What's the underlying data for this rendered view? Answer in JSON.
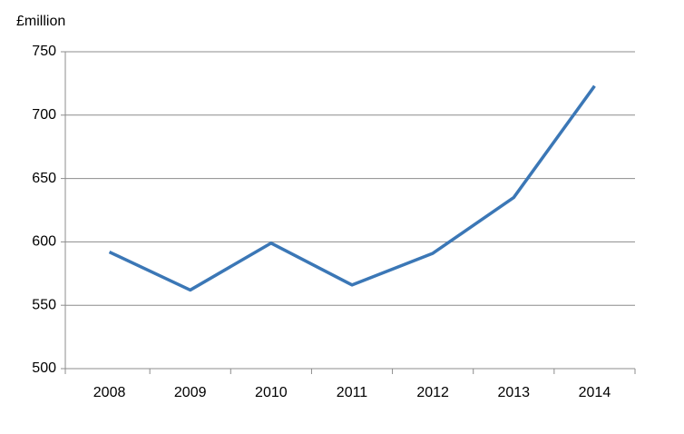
{
  "chart_data": {
    "type": "line",
    "y_label": "£million",
    "categories": [
      "2008",
      "2009",
      "2010",
      "2011",
      "2012",
      "2013",
      "2014"
    ],
    "values": [
      592,
      562,
      599,
      566,
      591,
      635,
      723
    ],
    "color": "#3b77b6",
    "ylim": [
      500,
      750
    ],
    "yticks": [
      500,
      550,
      600,
      650,
      700,
      750
    ],
    "grid": true
  }
}
